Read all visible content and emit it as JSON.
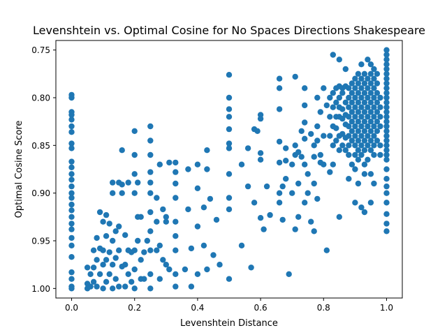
{
  "chart_data": {
    "type": "scatter",
    "title": "Levenshtein vs. Optimal Cosine for No Spaces Directions Shakespeare",
    "xlabel": "Levenshtein Distance",
    "ylabel": "Optimal Cosine Score",
    "xlim": [
      -0.05,
      1.05
    ],
    "ylim": [
      1.01,
      0.74
    ],
    "y_inverted": true,
    "grid": false,
    "legend": "none",
    "color": "#1f77b4",
    "x_ticks": [
      {
        "value": 0.0,
        "label": "0.0"
      },
      {
        "value": 0.2,
        "label": "0.2"
      },
      {
        "value": 0.4,
        "label": "0.4"
      },
      {
        "value": 0.6,
        "label": "0.6"
      },
      {
        "value": 0.8,
        "label": "0.8"
      },
      {
        "value": 1.0,
        "label": "1.0"
      }
    ],
    "y_ticks": [
      {
        "value": 0.75,
        "label": "0.75"
      },
      {
        "value": 0.8,
        "label": "0.80"
      },
      {
        "value": 0.85,
        "label": "0.85"
      },
      {
        "value": 0.9,
        "label": "0.90"
      },
      {
        "value": 0.95,
        "label": "0.95"
      },
      {
        "value": 1.0,
        "label": "1.00"
      }
    ],
    "points": [
      [
        0.0,
        0.797
      ],
      [
        0.0,
        0.8
      ],
      [
        0.0,
        0.815
      ],
      [
        0.0,
        0.818
      ],
      [
        0.0,
        0.823
      ],
      [
        0.0,
        0.83
      ],
      [
        0.0,
        0.836
      ],
      [
        0.0,
        0.848
      ],
      [
        0.0,
        0.853
      ],
      [
        0.0,
        0.867
      ],
      [
        0.0,
        0.873
      ],
      [
        0.0,
        0.88
      ],
      [
        0.0,
        0.886
      ],
      [
        0.0,
        0.893
      ],
      [
        0.0,
        0.9
      ],
      [
        0.0,
        0.905
      ],
      [
        0.0,
        0.912
      ],
      [
        0.0,
        0.918
      ],
      [
        0.0,
        0.925
      ],
      [
        0.0,
        0.932
      ],
      [
        0.0,
        0.938
      ],
      [
        0.0,
        0.947
      ],
      [
        0.0,
        0.955
      ],
      [
        0.0,
        0.967
      ],
      [
        0.0,
        0.983
      ],
      [
        0.0,
        0.99
      ],
      [
        0.0,
        0.998
      ],
      [
        0.0,
        1.0
      ],
      [
        0.05,
        0.978
      ],
      [
        0.05,
        0.995
      ],
      [
        0.05,
        1.0
      ],
      [
        0.06,
        0.985
      ],
      [
        0.06,
        0.998
      ],
      [
        0.07,
        0.96
      ],
      [
        0.07,
        0.978
      ],
      [
        0.07,
        0.993
      ],
      [
        0.08,
        0.947
      ],
      [
        0.08,
        0.97
      ],
      [
        0.08,
        0.998
      ],
      [
        0.09,
        0.92
      ],
      [
        0.09,
        0.958
      ],
      [
        0.09,
        0.985
      ],
      [
        0.1,
        0.93
      ],
      [
        0.1,
        0.96
      ],
      [
        0.1,
        0.975
      ],
      [
        0.1,
        1.0
      ],
      [
        0.11,
        0.923
      ],
      [
        0.11,
        0.945
      ],
      [
        0.11,
        0.97
      ],
      [
        0.11,
        0.993
      ],
      [
        0.12,
        0.932
      ],
      [
        0.12,
        0.962
      ],
      [
        0.12,
        0.985
      ],
      [
        0.13,
        0.889
      ],
      [
        0.13,
        0.9
      ],
      [
        0.13,
        0.95
      ],
      [
        0.13,
        0.975
      ],
      [
        0.13,
        1.0
      ],
      [
        0.14,
        0.94
      ],
      [
        0.14,
        0.968
      ],
      [
        0.14,
        0.99
      ],
      [
        0.15,
        0.889
      ],
      [
        0.15,
        0.935
      ],
      [
        0.15,
        0.96
      ],
      [
        0.15,
        0.998
      ],
      [
        0.16,
        0.855
      ],
      [
        0.16,
        0.891
      ],
      [
        0.16,
        0.9
      ],
      [
        0.16,
        0.977
      ],
      [
        0.17,
        0.944
      ],
      [
        0.17,
        0.975
      ],
      [
        0.17,
        0.998
      ],
      [
        0.18,
        0.889
      ],
      [
        0.18,
        0.96
      ],
      [
        0.18,
        0.985
      ],
      [
        0.19,
        0.962
      ],
      [
        0.19,
        0.993
      ],
      [
        0.2,
        0.835
      ],
      [
        0.2,
        0.86
      ],
      [
        0.2,
        0.88
      ],
      [
        0.2,
        0.9
      ],
      [
        0.2,
        0.96
      ],
      [
        0.2,
        0.98
      ],
      [
        0.2,
        1.0
      ],
      [
        0.21,
        0.889
      ],
      [
        0.21,
        0.925
      ],
      [
        0.21,
        0.95
      ],
      [
        0.22,
        0.925
      ],
      [
        0.22,
        0.97
      ],
      [
        0.22,
        0.99
      ],
      [
        0.23,
        0.962
      ],
      [
        0.23,
        0.99
      ],
      [
        0.24,
        0.95
      ],
      [
        0.25,
        0.83
      ],
      [
        0.25,
        0.845
      ],
      [
        0.25,
        0.86
      ],
      [
        0.25,
        0.878
      ],
      [
        0.25,
        0.889
      ],
      [
        0.25,
        0.9
      ],
      [
        0.25,
        0.92
      ],
      [
        0.25,
        0.94
      ],
      [
        0.25,
        0.96
      ],
      [
        0.25,
        0.985
      ],
      [
        0.25,
        1.0
      ],
      [
        0.27,
        0.905
      ],
      [
        0.27,
        0.93
      ],
      [
        0.27,
        0.96
      ],
      [
        0.28,
        0.87
      ],
      [
        0.28,
        0.955
      ],
      [
        0.28,
        0.99
      ],
      [
        0.29,
        0.917
      ],
      [
        0.29,
        0.97
      ],
      [
        0.3,
        0.925
      ],
      [
        0.3,
        0.93
      ],
      [
        0.3,
        0.975
      ],
      [
        0.31,
        0.868
      ],
      [
        0.31,
        0.98
      ],
      [
        0.33,
        0.868
      ],
      [
        0.33,
        0.878
      ],
      [
        0.33,
        0.89
      ],
      [
        0.33,
        0.905
      ],
      [
        0.33,
        0.93
      ],
      [
        0.33,
        0.945
      ],
      [
        0.33,
        0.96
      ],
      [
        0.33,
        0.985
      ],
      [
        0.33,
        0.998
      ],
      [
        0.36,
        0.98
      ],
      [
        0.37,
        0.875
      ],
      [
        0.37,
        0.917
      ],
      [
        0.38,
        0.958
      ],
      [
        0.38,
        0.998
      ],
      [
        0.4,
        0.87
      ],
      [
        0.4,
        0.895
      ],
      [
        0.4,
        0.935
      ],
      [
        0.4,
        0.985
      ],
      [
        0.42,
        0.955
      ],
      [
        0.42,
        0.915
      ],
      [
        0.43,
        0.855
      ],
      [
        0.43,
        0.875
      ],
      [
        0.43,
        0.98
      ],
      [
        0.44,
        0.906
      ],
      [
        0.45,
        0.965
      ],
      [
        0.46,
        0.928
      ],
      [
        0.47,
        0.975
      ],
      [
        0.5,
        0.776
      ],
      [
        0.5,
        0.8
      ],
      [
        0.5,
        0.812
      ],
      [
        0.5,
        0.82
      ],
      [
        0.5,
        0.833
      ],
      [
        0.5,
        0.848
      ],
      [
        0.5,
        0.853
      ],
      [
        0.5,
        0.88
      ],
      [
        0.5,
        0.905
      ],
      [
        0.5,
        0.917
      ],
      [
        0.5,
        0.99
      ],
      [
        0.54,
        0.87
      ],
      [
        0.54,
        0.955
      ],
      [
        0.56,
        0.853
      ],
      [
        0.56,
        0.893
      ],
      [
        0.57,
        0.978
      ],
      [
        0.58,
        0.833
      ],
      [
        0.58,
        0.91
      ],
      [
        0.59,
        0.835
      ],
      [
        0.6,
        0.818
      ],
      [
        0.6,
        0.822
      ],
      [
        0.6,
        0.858
      ],
      [
        0.6,
        0.865
      ],
      [
        0.6,
        0.926
      ],
      [
        0.61,
        0.938
      ],
      [
        0.62,
        0.893
      ],
      [
        0.63,
        0.923
      ],
      [
        0.66,
        0.78
      ],
      [
        0.66,
        0.79
      ],
      [
        0.66,
        0.812
      ],
      [
        0.66,
        0.846
      ],
      [
        0.66,
        0.868
      ],
      [
        0.66,
        0.9
      ],
      [
        0.66,
        0.91
      ],
      [
        0.67,
        0.893
      ],
      [
        0.67,
        0.928
      ],
      [
        0.68,
        0.853
      ],
      [
        0.68,
        0.866
      ],
      [
        0.68,
        0.885
      ],
      [
        0.69,
        0.985
      ],
      [
        0.7,
        0.87
      ],
      [
        0.7,
        0.9
      ],
      [
        0.71,
        0.85
      ],
      [
        0.71,
        0.86
      ],
      [
        0.71,
        0.938
      ],
      [
        0.71,
        0.778
      ],
      [
        0.72,
        0.857
      ],
      [
        0.72,
        0.89
      ],
      [
        0.72,
        0.925
      ],
      [
        0.73,
        0.835
      ],
      [
        0.73,
        0.862
      ],
      [
        0.74,
        0.79
      ],
      [
        0.74,
        0.808
      ],
      [
        0.74,
        0.826
      ],
      [
        0.74,
        0.843
      ],
      [
        0.74,
        0.87
      ],
      [
        0.74,
        0.91
      ],
      [
        0.75,
        0.88
      ],
      [
        0.75,
        0.9
      ],
      [
        0.76,
        0.838
      ],
      [
        0.76,
        0.93
      ],
      [
        0.77,
        0.85
      ],
      [
        0.77,
        0.862
      ],
      [
        0.77,
        0.89
      ],
      [
        0.77,
        0.94
      ],
      [
        0.78,
        0.8
      ],
      [
        0.78,
        0.83
      ],
      [
        0.78,
        0.845
      ],
      [
        0.78,
        0.906
      ],
      [
        0.79,
        0.815
      ],
      [
        0.79,
        0.86
      ],
      [
        0.79,
        0.868
      ],
      [
        0.8,
        0.79
      ],
      [
        0.8,
        0.84
      ],
      [
        0.8,
        0.87
      ],
      [
        0.81,
        0.808
      ],
      [
        0.81,
        0.96
      ],
      [
        0.82,
        0.8
      ],
      [
        0.82,
        0.82
      ],
      [
        0.82,
        0.84
      ],
      [
        0.82,
        0.878
      ],
      [
        0.83,
        0.755
      ],
      [
        0.83,
        0.795
      ],
      [
        0.83,
        0.81
      ],
      [
        0.83,
        0.83
      ],
      [
        0.83,
        0.85
      ],
      [
        0.83,
        0.87
      ],
      [
        0.84,
        0.79
      ],
      [
        0.84,
        0.805
      ],
      [
        0.84,
        0.82
      ],
      [
        0.84,
        0.832
      ],
      [
        0.84,
        0.845
      ],
      [
        0.85,
        0.76
      ],
      [
        0.85,
        0.788
      ],
      [
        0.85,
        0.8
      ],
      [
        0.85,
        0.81
      ],
      [
        0.85,
        0.82
      ],
      [
        0.85,
        0.84
      ],
      [
        0.85,
        0.855
      ],
      [
        0.85,
        0.925
      ],
      [
        0.86,
        0.79
      ],
      [
        0.86,
        0.795
      ],
      [
        0.86,
        0.812
      ],
      [
        0.86,
        0.822
      ],
      [
        0.86,
        0.838
      ],
      [
        0.86,
        0.85
      ],
      [
        0.87,
        0.77
      ],
      [
        0.87,
        0.788
      ],
      [
        0.87,
        0.805
      ],
      [
        0.87,
        0.818
      ],
      [
        0.87,
        0.828
      ],
      [
        0.87,
        0.842
      ],
      [
        0.87,
        0.855
      ],
      [
        0.88,
        0.79
      ],
      [
        0.88,
        0.8
      ],
      [
        0.88,
        0.81
      ],
      [
        0.88,
        0.82
      ],
      [
        0.88,
        0.83
      ],
      [
        0.88,
        0.84
      ],
      [
        0.88,
        0.85
      ],
      [
        0.88,
        0.86
      ],
      [
        0.88,
        0.885
      ],
      [
        0.89,
        0.785
      ],
      [
        0.89,
        0.795
      ],
      [
        0.89,
        0.805
      ],
      [
        0.89,
        0.815
      ],
      [
        0.89,
        0.825
      ],
      [
        0.89,
        0.835
      ],
      [
        0.89,
        0.845
      ],
      [
        0.89,
        0.87
      ],
      [
        0.9,
        0.78
      ],
      [
        0.9,
        0.79
      ],
      [
        0.9,
        0.8
      ],
      [
        0.9,
        0.81
      ],
      [
        0.9,
        0.82
      ],
      [
        0.9,
        0.83
      ],
      [
        0.9,
        0.84
      ],
      [
        0.9,
        0.85
      ],
      [
        0.9,
        0.86
      ],
      [
        0.9,
        0.875
      ],
      [
        0.9,
        0.91
      ],
      [
        0.91,
        0.775
      ],
      [
        0.91,
        0.785
      ],
      [
        0.91,
        0.795
      ],
      [
        0.91,
        0.805
      ],
      [
        0.91,
        0.815
      ],
      [
        0.91,
        0.825
      ],
      [
        0.91,
        0.835
      ],
      [
        0.91,
        0.845
      ],
      [
        0.91,
        0.855
      ],
      [
        0.91,
        0.865
      ],
      [
        0.91,
        0.89
      ],
      [
        0.92,
        0.765
      ],
      [
        0.92,
        0.78
      ],
      [
        0.92,
        0.79
      ],
      [
        0.92,
        0.8
      ],
      [
        0.92,
        0.81
      ],
      [
        0.92,
        0.82
      ],
      [
        0.92,
        0.83
      ],
      [
        0.92,
        0.84
      ],
      [
        0.92,
        0.85
      ],
      [
        0.92,
        0.86
      ],
      [
        0.92,
        0.915
      ],
      [
        0.93,
        0.775
      ],
      [
        0.93,
        0.785
      ],
      [
        0.93,
        0.795
      ],
      [
        0.93,
        0.805
      ],
      [
        0.93,
        0.815
      ],
      [
        0.93,
        0.825
      ],
      [
        0.93,
        0.835
      ],
      [
        0.93,
        0.845
      ],
      [
        0.93,
        0.855
      ],
      [
        0.93,
        0.87
      ],
      [
        0.93,
        0.88
      ],
      [
        0.93,
        0.92
      ],
      [
        0.94,
        0.76
      ],
      [
        0.94,
        0.78
      ],
      [
        0.94,
        0.79
      ],
      [
        0.94,
        0.8
      ],
      [
        0.94,
        0.81
      ],
      [
        0.94,
        0.82
      ],
      [
        0.94,
        0.83
      ],
      [
        0.94,
        0.84
      ],
      [
        0.94,
        0.85
      ],
      [
        0.94,
        0.865
      ],
      [
        0.95,
        0.765
      ],
      [
        0.95,
        0.775
      ],
      [
        0.95,
        0.785
      ],
      [
        0.95,
        0.795
      ],
      [
        0.95,
        0.805
      ],
      [
        0.95,
        0.815
      ],
      [
        0.95,
        0.825
      ],
      [
        0.95,
        0.835
      ],
      [
        0.95,
        0.845
      ],
      [
        0.95,
        0.855
      ],
      [
        0.95,
        0.88
      ],
      [
        0.95,
        0.91
      ],
      [
        0.96,
        0.77
      ],
      [
        0.96,
        0.78
      ],
      [
        0.96,
        0.79
      ],
      [
        0.96,
        0.8
      ],
      [
        0.96,
        0.81
      ],
      [
        0.96,
        0.82
      ],
      [
        0.96,
        0.83
      ],
      [
        0.96,
        0.84
      ],
      [
        0.96,
        0.85
      ],
      [
        0.96,
        0.86
      ],
      [
        0.96,
        0.89
      ],
      [
        0.97,
        0.775
      ],
      [
        0.97,
        0.785
      ],
      [
        0.97,
        0.795
      ],
      [
        0.97,
        0.805
      ],
      [
        0.97,
        0.815
      ],
      [
        0.97,
        0.825
      ],
      [
        0.97,
        0.835
      ],
      [
        0.97,
        0.845
      ],
      [
        0.98,
        0.8
      ],
      [
        0.98,
        0.81
      ],
      [
        0.98,
        0.82
      ],
      [
        0.98,
        0.83
      ],
      [
        0.98,
        0.85
      ],
      [
        0.98,
        0.86
      ],
      [
        1.0,
        0.75
      ],
      [
        1.0,
        0.755
      ],
      [
        1.0,
        0.76
      ],
      [
        1.0,
        0.765
      ],
      [
        1.0,
        0.77
      ],
      [
        1.0,
        0.775
      ],
      [
        1.0,
        0.78
      ],
      [
        1.0,
        0.785
      ],
      [
        1.0,
        0.79
      ],
      [
        1.0,
        0.795
      ],
      [
        1.0,
        0.8
      ],
      [
        1.0,
        0.805
      ],
      [
        1.0,
        0.81
      ],
      [
        1.0,
        0.815
      ],
      [
        1.0,
        0.82
      ],
      [
        1.0,
        0.825
      ],
      [
        1.0,
        0.83
      ],
      [
        1.0,
        0.835
      ],
      [
        1.0,
        0.84
      ],
      [
        1.0,
        0.845
      ],
      [
        1.0,
        0.85
      ],
      [
        1.0,
        0.855
      ],
      [
        1.0,
        0.86
      ],
      [
        1.0,
        0.865
      ],
      [
        1.0,
        0.875
      ],
      [
        1.0,
        0.885
      ],
      [
        1.0,
        0.893
      ],
      [
        1.0,
        0.9
      ],
      [
        1.0,
        0.91
      ],
      [
        1.0,
        0.922
      ],
      [
        1.0,
        0.932
      ],
      [
        1.0,
        0.94
      ]
    ]
  }
}
